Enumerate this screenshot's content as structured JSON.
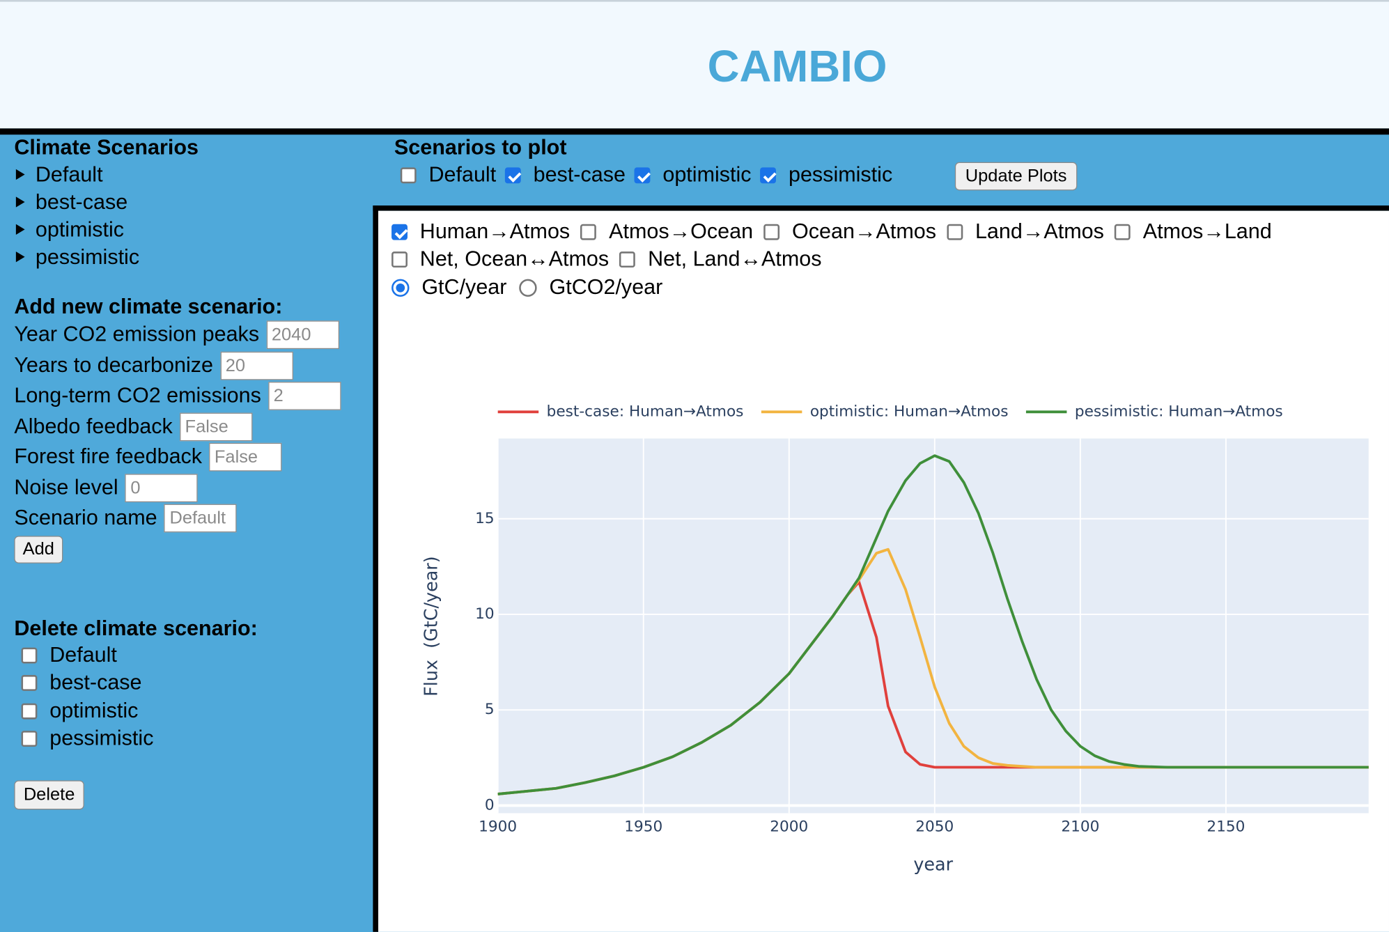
{
  "header": {
    "title": "CAMBIO"
  },
  "sidebar": {
    "scenarios_title": "Climate Scenarios",
    "scenarios": [
      "Default",
      "best-case",
      "optimistic",
      "pessimistic"
    ],
    "add_title": "Add new climate scenario:",
    "fields": [
      {
        "label": "Year CO2 emission peaks",
        "placeholder": "2040"
      },
      {
        "label": "Years to decarbonize",
        "placeholder": "20"
      },
      {
        "label": "Long-term CO2 emissions",
        "placeholder": "2"
      },
      {
        "label": "Albedo feedback",
        "placeholder": "False"
      },
      {
        "label": "Forest fire feedback",
        "placeholder": "False"
      },
      {
        "label": "Noise level",
        "placeholder": "0"
      },
      {
        "label": "Scenario name",
        "placeholder": "Default"
      }
    ],
    "add_button": "Add",
    "delete_title": "Delete climate scenario:",
    "delete_options": [
      {
        "label": "Default",
        "checked": false
      },
      {
        "label": "best-case",
        "checked": false
      },
      {
        "label": "optimistic",
        "checked": false
      },
      {
        "label": "pessimistic",
        "checked": false
      }
    ],
    "delete_button": "Delete"
  },
  "scenarios_to_plot": {
    "title": "Scenarios to plot",
    "options": [
      {
        "label": "Default",
        "checked": false
      },
      {
        "label": "best-case",
        "checked": true
      },
      {
        "label": "optimistic",
        "checked": true
      },
      {
        "label": "pessimistic",
        "checked": true
      }
    ],
    "button": "Update Plots"
  },
  "flux_options": [
    {
      "label": "Human→Atmos",
      "checked": true
    },
    {
      "label": "Atmos→Ocean",
      "checked": false
    },
    {
      "label": "Ocean→Atmos",
      "checked": false
    },
    {
      "label": "Land→Atmos",
      "checked": false
    },
    {
      "label": "Atmos→Land",
      "checked": false
    },
    {
      "label": "Net, Ocean↔Atmos",
      "checked": false
    },
    {
      "label": "Net, Land↔Atmos",
      "checked": false
    }
  ],
  "units": [
    {
      "label": "GtC/year",
      "selected": true
    },
    {
      "label": "GtCO2/year",
      "selected": false
    }
  ],
  "chart_data": {
    "type": "line",
    "x_label": "year",
    "y_label": "Flux  (GtC/year)",
    "x": [
      1900,
      1910,
      1920,
      1930,
      1940,
      1950,
      1960,
      1970,
      1980,
      1990,
      2000,
      2010,
      2015,
      2020,
      2024,
      2030,
      2034,
      2040,
      2045,
      2050,
      2055,
      2060,
      2065,
      2070,
      2075,
      2080,
      2085,
      2090,
      2095,
      2100,
      2105,
      2110,
      2115,
      2120,
      2130,
      2140,
      2150,
      2160,
      2170,
      2180,
      2190,
      2199
    ],
    "series": [
      {
        "name": "best-case: Human→Atmos",
        "color": "#e0403c",
        "values": [
          0.6,
          0.75,
          0.9,
          1.2,
          1.55,
          2.0,
          2.55,
          3.3,
          4.2,
          5.4,
          6.9,
          8.9,
          9.9,
          11.0,
          11.7,
          8.8,
          5.2,
          2.8,
          2.15,
          2.0,
          2.0,
          2.0,
          2.0,
          2.0,
          2.0,
          2.0,
          2.0,
          2.0,
          2.0,
          2.0,
          2.0,
          2.0,
          2.0,
          2.0,
          2.0,
          2.0,
          2.0,
          2.0,
          2.0,
          2.0,
          2.0,
          2.0
        ]
      },
      {
        "name": "optimistic: Human→Atmos",
        "color": "#f2b440",
        "values": [
          0.6,
          0.75,
          0.9,
          1.2,
          1.55,
          2.0,
          2.55,
          3.3,
          4.2,
          5.4,
          6.9,
          8.9,
          9.9,
          11.0,
          11.8,
          13.2,
          13.4,
          11.3,
          8.8,
          6.2,
          4.3,
          3.1,
          2.5,
          2.2,
          2.1,
          2.05,
          2.0,
          2.0,
          2.0,
          2.0,
          2.0,
          2.0,
          2.0,
          2.0,
          2.0,
          2.0,
          2.0,
          2.0,
          2.0,
          2.0,
          2.0,
          2.0
        ]
      },
      {
        "name": "pessimistic: Human→Atmos",
        "color": "#3f8f3a",
        "values": [
          0.6,
          0.75,
          0.9,
          1.2,
          1.55,
          2.0,
          2.55,
          3.3,
          4.2,
          5.4,
          6.9,
          8.9,
          9.9,
          11.0,
          11.9,
          14.0,
          15.4,
          17.0,
          17.9,
          18.3,
          18.0,
          16.9,
          15.3,
          13.2,
          10.8,
          8.6,
          6.6,
          5.0,
          3.9,
          3.1,
          2.6,
          2.3,
          2.15,
          2.05,
          2.0,
          2.0,
          2.0,
          2.0,
          2.0,
          2.0,
          2.0,
          2.0
        ]
      }
    ],
    "xlim": [
      1900,
      2199
    ],
    "ylim": [
      -0.4,
      19.2
    ],
    "xticks": [
      1900,
      1950,
      2000,
      2050,
      2100,
      2150
    ],
    "yticks": [
      0,
      5,
      10,
      15
    ],
    "grid": true,
    "legend": "top"
  }
}
